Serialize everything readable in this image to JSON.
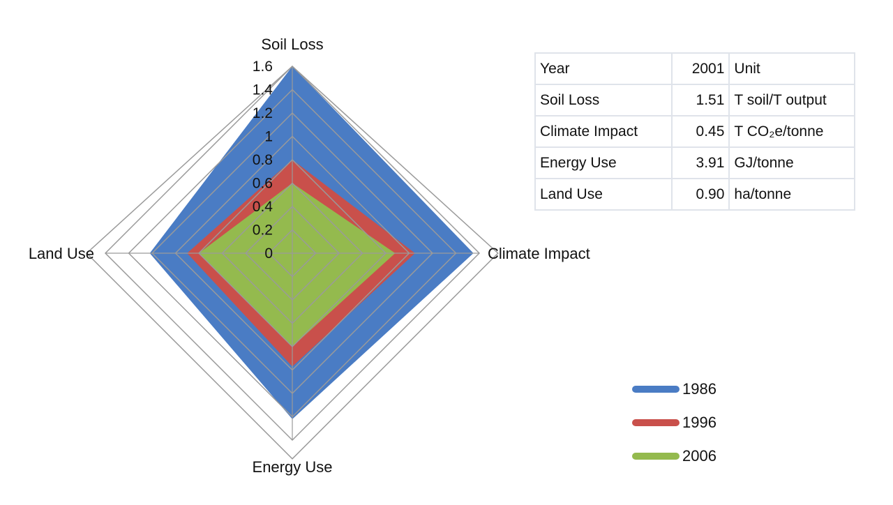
{
  "chart_data": {
    "type": "radar",
    "axes": [
      "Soil Loss",
      "Climate Impact",
      "Energy Use",
      "Land Use"
    ],
    "rlim": [
      0,
      1.6
    ],
    "ticks": [
      "0",
      "0.2",
      "0.4",
      "0.6",
      "0.8",
      "1",
      "1.2",
      "1.4",
      "1.6"
    ],
    "tick_values": [
      0,
      0.2,
      0.4,
      0.6,
      0.8,
      1.0,
      1.2,
      1.4,
      1.6
    ],
    "series": [
      {
        "name": "1986",
        "color": "#4a7cc4",
        "values": [
          1.6,
          1.55,
          1.42,
          1.22
        ]
      },
      {
        "name": "1996",
        "color": "#c9504b",
        "values": [
          0.8,
          1.05,
          0.97,
          0.9
        ]
      },
      {
        "name": "2006",
        "color": "#94ba4e",
        "values": [
          0.6,
          0.88,
          0.8,
          0.8
        ]
      }
    ],
    "legend_position": "bottom-right",
    "grid": true
  },
  "table": {
    "rows": [
      {
        "label": "Year",
        "value": "2001",
        "unit": "Unit"
      },
      {
        "label": "Soil Loss",
        "value": "1.51",
        "unit": "T soil/T output"
      },
      {
        "label": "Climate Impact",
        "value": "0.45",
        "unit": "T CO₂e/tonne"
      },
      {
        "label": "Energy Use",
        "value": "3.91",
        "unit": "GJ/tonne"
      },
      {
        "label": "Land Use",
        "value": "0.90",
        "unit": "ha/tonne"
      }
    ]
  }
}
